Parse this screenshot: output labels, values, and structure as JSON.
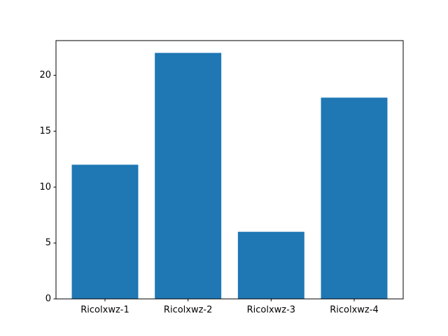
{
  "chart_data": {
    "type": "bar",
    "categories": [
      "Ricolxwz-1",
      "Ricolxwz-2",
      "Ricolxwz-3",
      "Ricolxwz-4"
    ],
    "values": [
      12,
      22,
      6,
      18
    ],
    "color": "#1f77b4",
    "ylim": [
      0,
      23.1
    ],
    "yticks": [
      0,
      5,
      10,
      15,
      20
    ],
    "grid": false
  }
}
